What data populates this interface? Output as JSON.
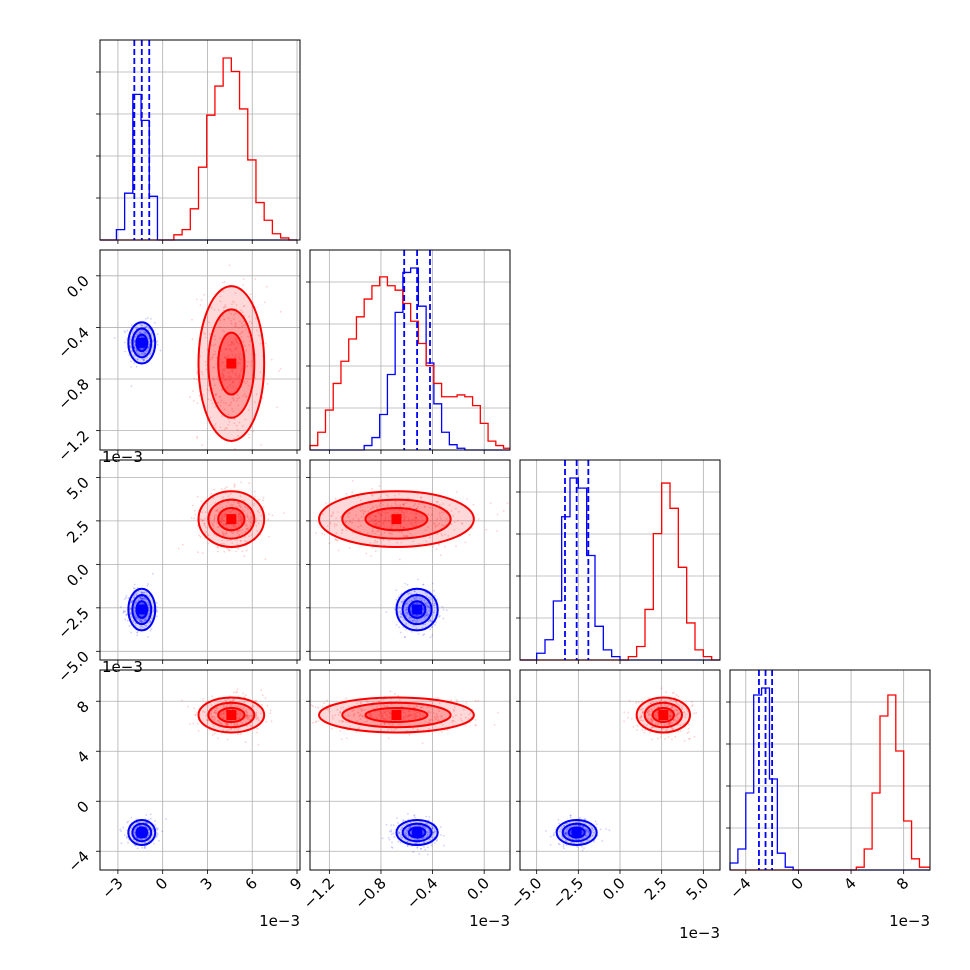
{
  "colors": {
    "blue": "#0000ff",
    "red": "#ff0000",
    "grid": "#b0b0b0",
    "axes": "#000000"
  },
  "chart_data": {
    "type": "corner",
    "grid": true,
    "parameters": [
      {
        "xlim": [
          -4.2,
          9.2
        ],
        "xticks": [
          -3,
          0,
          3,
          6,
          9
        ],
        "xtick_labels": [
          "−3",
          "0",
          "3",
          "6",
          "9"
        ],
        "ylim": [
          -1.35,
          0.2
        ],
        "yticks": [
          -1.2,
          -0.8,
          -0.4,
          0.0
        ],
        "ytick_labels": [
          "−1.2",
          "−0.8",
          "−0.4",
          "0.0"
        ],
        "offset": "1e−3"
      },
      {
        "xlim": [
          -1.35,
          0.2
        ],
        "xticks": [
          -1.2,
          -0.8,
          -0.4,
          0.0
        ],
        "xtick_labels": [
          "−1.2",
          "−0.8",
          "−0.4",
          "0.0"
        ],
        "ylim": [
          -5.5,
          6.0
        ],
        "yticks": [
          -5.0,
          -2.5,
          0.0,
          2.5,
          5.0
        ],
        "ytick_labels": [
          "−5.0",
          "−2.5",
          "0.0",
          "2.5",
          "5.0"
        ],
        "offset": "1e−3"
      },
      {
        "xlim": [
          -6.0,
          6.0
        ],
        "xticks": [
          -5.0,
          -2.5,
          0.0,
          2.5,
          5.0
        ],
        "xtick_labels": [
          "−5.0",
          "−2.5",
          "0.0",
          "2.5",
          "5.0"
        ],
        "ylim": [
          -5.5,
          10.5
        ],
        "yticks": [
          -4,
          0,
          4,
          8
        ],
        "ytick_labels": [
          "−4",
          "0",
          "4",
          "8"
        ],
        "offset": "1e−3"
      },
      {
        "xlim": [
          -5.2,
          10.0
        ],
        "xticks": [
          -4,
          0,
          4,
          8
        ],
        "xtick_labels": [
          "−4",
          "0",
          "4",
          "8"
        ],
        "offset": "1e−3"
      }
    ],
    "series": [
      {
        "color": "blue",
        "means": [
          -1.4,
          -0.52,
          -2.6,
          -2.5
        ],
        "sds": [
          0.45,
          0.08,
          0.6,
          0.5
        ],
        "quantiles": [
          [
            -1.9,
            -1.4,
            -0.9
          ],
          [
            -0.62,
            -0.52,
            -0.42
          ],
          [
            -3.3,
            -2.6,
            -1.9
          ],
          [
            -3.0,
            -2.5,
            -2.0
          ]
        ]
      },
      {
        "color": "red",
        "means": [
          4.6,
          -0.68,
          2.6,
          6.9
        ],
        "sds": [
          1.1,
          0.3,
          0.8,
          0.7
        ]
      }
    ],
    "histograms": [
      {
        "bin_edges": [
          -4.2,
          -3.65,
          -3.1,
          -2.55,
          -2.0,
          -1.45,
          -0.9,
          -0.35,
          0.2,
          0.75,
          1.3,
          1.85,
          2.4,
          2.95,
          3.5,
          4.05,
          4.6,
          5.15,
          5.7,
          6.25,
          6.8,
          7.35,
          7.9,
          8.45,
          9.0
        ],
        "blue": [
          0,
          0,
          0.1,
          0.45,
          1.4,
          1.15,
          0.42,
          0,
          0,
          0,
          0,
          0,
          0,
          0,
          0,
          0,
          0,
          0,
          0,
          0,
          0,
          0,
          0,
          0
        ],
        "red": [
          0,
          0,
          0,
          0,
          0,
          0,
          0,
          0,
          0,
          0.05,
          0.1,
          0.3,
          0.7,
          1.2,
          1.48,
          1.75,
          1.62,
          1.26,
          0.77,
          0.36,
          0.19,
          0.06,
          0.02,
          0
        ]
      },
      {
        "bin_edges": [
          -1.35,
          -1.29,
          -1.23,
          -1.17,
          -1.11,
          -1.05,
          -0.99,
          -0.93,
          -0.87,
          -0.81,
          -0.75,
          -0.69,
          -0.63,
          -0.57,
          -0.51,
          -0.45,
          -0.39,
          -0.33,
          -0.27,
          -0.21,
          -0.15,
          -0.09,
          -0.03,
          0.03,
          0.09,
          0.15,
          0.2
        ],
        "blue": [
          0,
          0,
          0,
          0,
          0,
          0,
          0,
          0.05,
          0.14,
          0.4,
          0.85,
          1.55,
          2.0,
          2.05,
          1.62,
          0.98,
          0.52,
          0.2,
          0.06,
          0.02,
          0,
          0,
          0,
          0,
          0,
          0
        ],
        "red": [
          0.05,
          0.2,
          0.45,
          0.75,
          1.0,
          1.25,
          1.5,
          1.7,
          1.85,
          1.95,
          1.85,
          1.8,
          1.65,
          1.45,
          1.2,
          0.95,
          0.75,
          0.6,
          0.6,
          0.62,
          0.6,
          0.5,
          0.3,
          0.1,
          0.05,
          0.02
        ]
      },
      {
        "bin_edges": [
          -6.0,
          -5.5,
          -5.0,
          -4.5,
          -4.0,
          -3.5,
          -3.0,
          -2.5,
          -2.0,
          -1.5,
          -1.0,
          -0.5,
          0.0,
          0.5,
          1.0,
          1.5,
          2.0,
          2.5,
          3.0,
          3.5,
          4.0,
          4.5,
          5.0,
          5.5,
          6.0
        ],
        "blue": [
          0,
          0,
          0.04,
          0.12,
          0.35,
          0.85,
          1.08,
          1.02,
          0.62,
          0.2,
          0.06,
          0.02,
          0,
          0,
          0,
          0,
          0,
          0,
          0,
          0,
          0,
          0,
          0,
          0
        ],
        "red": [
          0,
          0,
          0,
          0,
          0,
          0,
          0,
          0,
          0,
          0,
          0,
          0,
          0,
          0.02,
          0.08,
          0.3,
          0.75,
          1.05,
          0.9,
          0.55,
          0.22,
          0.06,
          0.02,
          0
        ]
      },
      {
        "bin_edges": [
          -5.2,
          -4.6,
          -4.0,
          -3.4,
          -2.8,
          -2.2,
          -1.6,
          -1.0,
          -0.4,
          0.2,
          0.8,
          1.4,
          2.0,
          2.6,
          3.2,
          3.8,
          4.4,
          5.0,
          5.6,
          6.2,
          6.8,
          7.4,
          8.0,
          8.6,
          9.2,
          10.0
        ],
        "blue": [
          0.05,
          0.15,
          0.55,
          1.25,
          1.3,
          0.65,
          0.12,
          0.02,
          0,
          0,
          0,
          0,
          0,
          0,
          0,
          0,
          0,
          0,
          0,
          0,
          0,
          0,
          0,
          0,
          0
        ],
        "red": [
          0,
          0,
          0,
          0,
          0,
          0,
          0,
          0,
          0,
          0,
          0,
          0,
          0,
          0,
          0,
          0,
          0.02,
          0.15,
          0.55,
          1.1,
          1.25,
          0.85,
          0.35,
          0.08,
          0.02
        ]
      }
    ]
  }
}
